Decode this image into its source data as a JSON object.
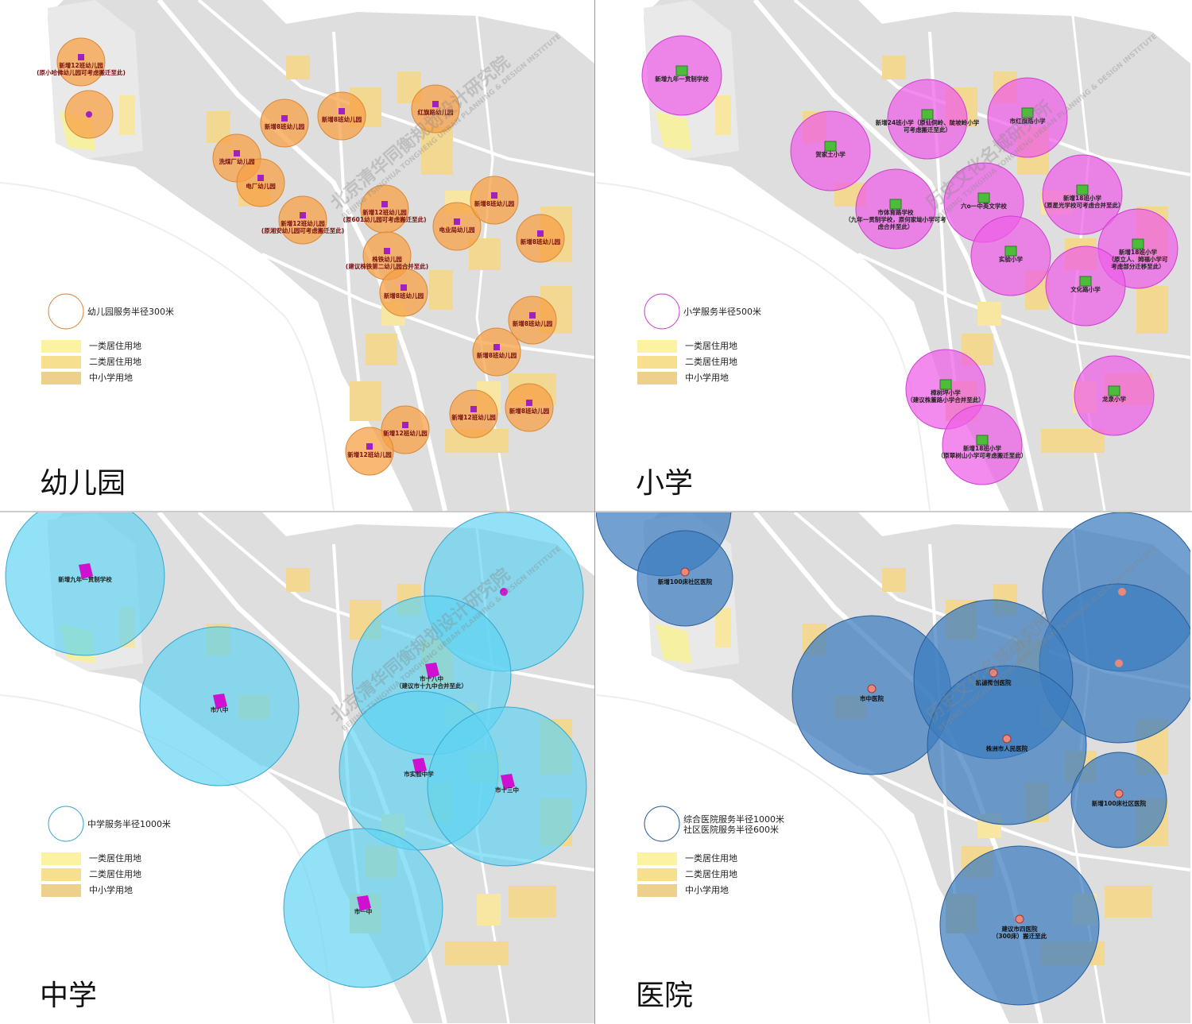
{
  "watermarks": [
    "北京清华同衡规划设计研究院",
    "历史文化名城研究所",
    "BEIJING TSINGHUA TONGHENG URBAN PLANNING & DESIGN INSTITUTE"
  ],
  "land_use": [
    "一类居住用地",
    "二类居住用地",
    "中小学用地"
  ],
  "panels": [
    {
      "title": "幼儿园",
      "legend": [
        "幼儿园服务半径300米"
      ],
      "facilities": [
        {
          "label": [
            "新增12班幼儿园",
            "(原小哈佛幼儿园可考虑搬迁至此)"
          ]
        },
        {
          "label": [
            "新增8班幼儿园"
          ]
        },
        {
          "label": [
            "新增8班幼儿园"
          ]
        },
        {
          "label": [
            "红旗路幼儿园"
          ]
        },
        {
          "label": [
            "洗煤厂幼儿园"
          ]
        },
        {
          "label": [
            "电厂幼儿园"
          ]
        },
        {
          "label": [
            "新增12班幼儿园",
            "(原湘安幼儿园可考虑搬迁至此)"
          ]
        },
        {
          "label": [
            "新增12班幼儿园",
            "(原601幼儿园可考虑搬迁至此)"
          ]
        },
        {
          "label": [
            "株铁幼儿园",
            "(建议株铁第二幼儿园合并至此)"
          ]
        },
        {
          "label": [
            "新增8班幼儿园"
          ]
        },
        {
          "label": [
            "电业局幼儿园"
          ]
        },
        {
          "label": [
            "新增8班幼儿园"
          ]
        },
        {
          "label": [
            "新增8班幼儿园"
          ]
        },
        {
          "label": [
            "新增8班幼儿园"
          ]
        },
        {
          "label": [
            "新增8班幼儿园"
          ]
        },
        {
          "label": [
            "新增12班幼儿园"
          ]
        },
        {
          "label": [
            "新增8班幼儿园"
          ]
        },
        {
          "label": [
            "新增12班幼儿园"
          ]
        },
        {
          "label": [
            "新增12班幼儿园"
          ]
        }
      ]
    },
    {
      "title": "小学",
      "legend": [
        "小学服务半径500米"
      ],
      "facilities": [
        {
          "label": [
            "新增九年一贯制学校"
          ]
        },
        {
          "label": [
            "新增24班小学（原仙侗岭、陡坡岭小学",
            "可考虑搬迁至此）"
          ]
        },
        {
          "label": [
            "市红旗路小学"
          ]
        },
        {
          "label": [
            "贺家土小学"
          ]
        },
        {
          "label": [
            "市体育路学校",
            "（九年一贯制学校，原何家坳小学可考",
            "虑合并至此）"
          ]
        },
        {
          "label": [
            "六o一中英文学校"
          ]
        },
        {
          "label": [
            "新增18班小学",
            "（原星光学校可考虑合并至此）"
          ]
        },
        {
          "label": [
            "实验小学"
          ]
        },
        {
          "label": [
            "新增18班小学",
            "（原立人、姆福小学可",
            "考虑部分迁移至此）"
          ]
        },
        {
          "label": [
            "文化路小学"
          ]
        },
        {
          "label": [
            "樟树坪小学",
            "（建议株董路小学合并至此）"
          ]
        },
        {
          "label": [
            "龙泉小学"
          ]
        },
        {
          "label": [
            "新增18班小学",
            "（原翠树山小学可考虑搬迁至此）"
          ]
        }
      ]
    },
    {
      "title": "中学",
      "legend": [
        "中学服务半径1000米"
      ],
      "facilities": [
        {
          "label": [
            "新增九年一贯制学校"
          ]
        },
        {
          "label": [
            "市八中"
          ]
        },
        {
          "label": [
            "市十八中",
            "（建议市十九中合并至此）"
          ]
        },
        {
          "label": [
            "市实验中学"
          ]
        },
        {
          "label": [
            "市十三中"
          ]
        },
        {
          "label": [
            "市一中"
          ]
        }
      ]
    },
    {
      "title": "医院",
      "legend": [
        "综合医院服务半径1000米",
        "社区医院服务半径600米"
      ],
      "facilities": [
        {
          "label": [
            "新增100床社区医院"
          ]
        },
        {
          "label": [
            "市中医院"
          ]
        },
        {
          "label": [
            "凯德微创医院"
          ]
        },
        {
          "label": [
            "株洲市人民医院"
          ]
        },
        {
          "label": [
            "新增100床社区医院"
          ]
        },
        {
          "label": [
            "建议市四医院",
            "（300床）搬迁至此"
          ]
        }
      ]
    }
  ]
}
